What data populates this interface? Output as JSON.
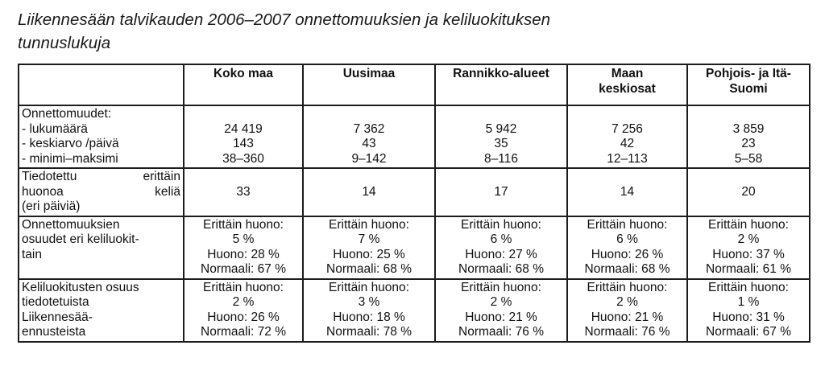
{
  "title": [
    "Liikennesään talvikauden 2006–2007 onnettomuuksien ja keliluokituksen",
    "tunnuslukuja"
  ],
  "columns": [
    "",
    "Koko maa",
    "Uusimaa",
    "Rannikko-alueet",
    "Maan keskiosat",
    "Pohjois- ja Itä-Suomi"
  ],
  "columns_lines": [
    [
      ""
    ],
    [
      "Koko maa"
    ],
    [
      "Uusimaa"
    ],
    [
      "Rannikko-alueet"
    ],
    [
      "Maan",
      "keskiosat"
    ],
    [
      "Pohjois- ja Itä-",
      "Suomi"
    ]
  ],
  "rows": {
    "accidents": {
      "label_lines": [
        "Onnettomuudet:",
        "- lukumäärä",
        "- keskiarvo /päivä",
        "- minimi–maksimi"
      ],
      "count": [
        "24 419",
        "7 362",
        "5 942",
        "7 256",
        "3 859"
      ],
      "avg_per_day": [
        "143",
        "43",
        "35",
        "42",
        "23"
      ],
      "min_max": [
        "38–360",
        "9–142",
        "8–116",
        "12–113",
        "5–58"
      ]
    },
    "very_bad_days": {
      "label_lines": [
        [
          "Tiedotettu",
          "erittäin"
        ],
        [
          "huonoa",
          "keliä"
        ],
        [
          "(eri päiviä)"
        ]
      ],
      "values": [
        "33",
        "14",
        "17",
        "14",
        "20"
      ]
    },
    "accident_shares": {
      "label_lines": [
        "Onnettomuuksien",
        "osuudet eri keliluokit-",
        "tain"
      ],
      "very_bad_label": "Erittäin huono:",
      "very_bad": [
        "5 %",
        "7 %",
        "6 %",
        "6 %",
        "2 %"
      ],
      "bad": [
        "Huono: 28 %",
        "Huono: 25 %",
        "Huono: 27 %",
        "Huono: 26 %",
        "Huono: 37 %"
      ],
      "normal": [
        "Normaali: 67 %",
        "Normaali: 68 %",
        "Normaali: 68 %",
        "Normaali: 68 %",
        "Normaali: 61 %"
      ]
    },
    "classification_shares": {
      "label_lines": [
        "Keliluokitusten osuus",
        "tiedotetuista",
        "Liikennesää-",
        "ennusteista"
      ],
      "very_bad_label": "Erittäin huono:",
      "very_bad": [
        "2 %",
        "3 %",
        "2 %",
        "2 %",
        "1 %"
      ],
      "bad": [
        "Huono: 26 %",
        "Huono: 18 %",
        "Huono: 21 %",
        "Huono: 21 %",
        "Huono: 31 %"
      ],
      "normal": [
        "Normaali: 72 %",
        "Normaali: 78 %",
        "Normaali: 76 %",
        "Normaali: 76 %",
        "Normaali: 67 %"
      ]
    }
  }
}
